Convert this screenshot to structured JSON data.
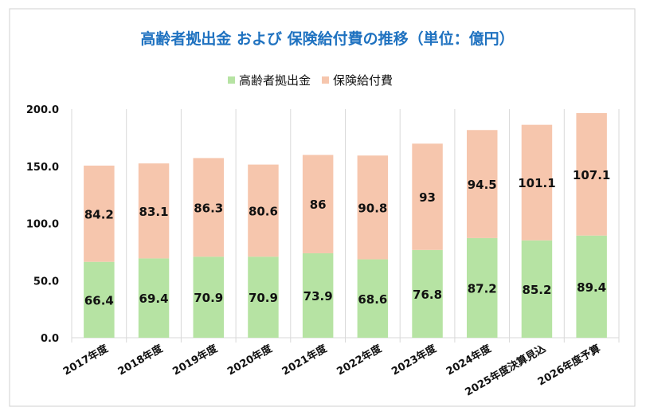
{
  "chart_data": {
    "type": "bar",
    "stacked": true,
    "title": "高齢者拠出金 および 保険給付費の推移（単位：億円）",
    "categories": [
      "2017年度",
      "2018年度",
      "2019年度",
      "2020年度",
      "2021年度",
      "2022年度",
      "2023年度",
      "2024年度",
      "2025年度決算見込",
      "2026年度予算"
    ],
    "series": [
      {
        "name": "高齢者拠出金",
        "color": "#b6e3a3",
        "values": [
          66.4,
          69.4,
          70.9,
          70.9,
          73.9,
          68.6,
          76.8,
          87.2,
          85.2,
          89.4
        ]
      },
      {
        "name": "保険給付費",
        "color": "#f6c6ad",
        "values": [
          84.2,
          83.1,
          86.3,
          80.6,
          86.0,
          90.8,
          93.0,
          94.5,
          101.1,
          107.1
        ]
      }
    ],
    "ylim": [
      0,
      200
    ],
    "yticks": [
      "0.0",
      "50.0",
      "100.0",
      "150.0",
      "200.0"
    ],
    "legend": "top",
    "grid": "vertical separators",
    "title_color": "#1f72c0"
  }
}
